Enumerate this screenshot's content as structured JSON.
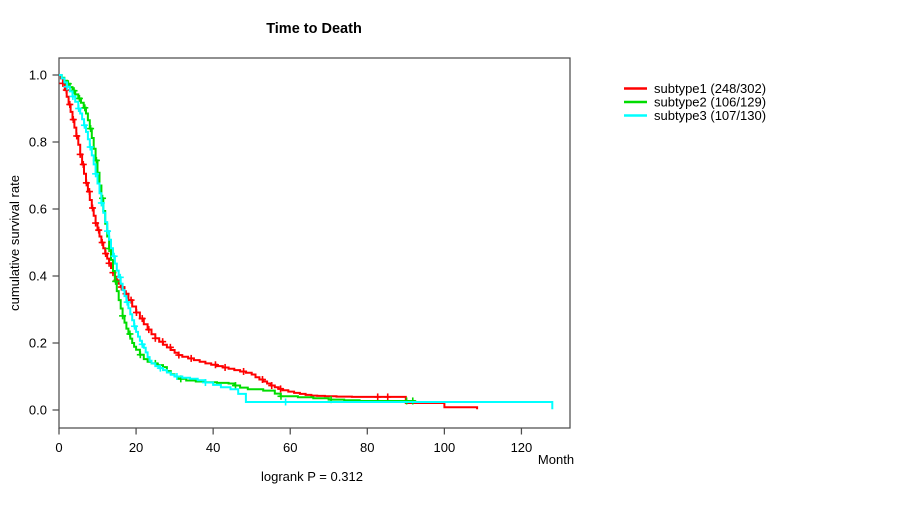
{
  "figure": {
    "background": "#FFFFFF",
    "axis_color": "#4d4d4d",
    "text_color": "#000000"
  },
  "chart_data": {
    "type": "line",
    "variant": "kaplan-meier-survival",
    "title": "Time to Death",
    "xlabel": "Month",
    "ylabel": "cumulative survival rate",
    "footnote": "logrank P = 0.312",
    "xlim": [
      0,
      132.6
    ],
    "ylim": [
      0,
      1
    ],
    "x_ticks": [
      0,
      20,
      40,
      60,
      80,
      100,
      120
    ],
    "y_ticks": [
      0.0,
      0.2,
      0.4,
      0.6,
      0.8,
      1.0
    ],
    "grid": false,
    "legend_position": "right-outside",
    "series": [
      {
        "name": "subtype1 (248/302)",
        "events": 248,
        "n": 302,
        "color": "#FF0000",
        "points": [
          [
            0,
            1
          ],
          [
            0.5,
            0.99
          ],
          [
            1,
            0.975
          ],
          [
            1.5,
            0.955
          ],
          [
            2,
            0.935
          ],
          [
            2.5,
            0.912
          ],
          [
            3,
            0.89
          ],
          [
            3.5,
            0.867
          ],
          [
            4,
            0.843
          ],
          [
            4.5,
            0.818
          ],
          [
            5,
            0.792
          ],
          [
            5.5,
            0.763
          ],
          [
            6,
            0.733
          ],
          [
            6.5,
            0.705
          ],
          [
            7,
            0.678
          ],
          [
            7.5,
            0.652
          ],
          [
            8,
            0.627
          ],
          [
            8.5,
            0.603
          ],
          [
            9,
            0.58
          ],
          [
            9.5,
            0.558
          ],
          [
            10,
            0.537
          ],
          [
            10.5,
            0.518
          ],
          [
            11,
            0.5
          ],
          [
            11.5,
            0.483
          ],
          [
            12,
            0.467
          ],
          [
            12.5,
            0.452
          ],
          [
            13,
            0.438
          ],
          [
            13.5,
            0.424
          ],
          [
            14,
            0.41
          ],
          [
            14.5,
            0.398
          ],
          [
            15,
            0.387
          ],
          [
            15.5,
            0.377
          ],
          [
            16,
            0.367
          ],
          [
            17,
            0.347
          ],
          [
            18,
            0.328
          ],
          [
            19,
            0.309
          ],
          [
            20,
            0.291
          ],
          [
            21,
            0.273
          ],
          [
            22,
            0.256
          ],
          [
            23,
            0.24
          ],
          [
            24,
            0.226
          ],
          [
            25,
            0.214
          ],
          [
            26,
            0.204
          ],
          [
            27,
            0.195
          ],
          [
            28,
            0.187
          ],
          [
            29,
            0.179
          ],
          [
            30,
            0.171
          ],
          [
            31,
            0.164
          ],
          [
            32,
            0.159
          ],
          [
            33.5,
            0.154
          ],
          [
            35,
            0.149
          ],
          [
            36.5,
            0.144
          ],
          [
            38,
            0.139
          ],
          [
            39.5,
            0.135
          ],
          [
            41,
            0.131
          ],
          [
            42.5,
            0.127
          ],
          [
            44,
            0.123
          ],
          [
            45.5,
            0.119
          ],
          [
            47,
            0.115
          ],
          [
            48.5,
            0.111
          ],
          [
            50,
            0.106
          ],
          [
            51,
            0.098
          ],
          [
            52,
            0.091
          ],
          [
            53,
            0.085
          ],
          [
            54,
            0.079
          ],
          [
            55,
            0.073
          ],
          [
            56,
            0.068
          ],
          [
            57,
            0.063
          ],
          [
            58,
            0.059
          ],
          [
            59.5,
            0.055
          ],
          [
            61,
            0.051
          ],
          [
            62.5,
            0.048
          ],
          [
            64,
            0.045
          ],
          [
            65.5,
            0.043
          ],
          [
            67,
            0.042
          ],
          [
            69,
            0.041
          ],
          [
            72,
            0.04
          ],
          [
            76,
            0.039
          ],
          [
            90,
            0.021
          ],
          [
            100,
            0.008
          ],
          [
            108.5,
            0.002
          ]
        ],
        "censor_marks": [
          1.0,
          1.9,
          2.8,
          3.7,
          4.6,
          5.5,
          6.3,
          7.1,
          7.9,
          8.7,
          9.5,
          10.3,
          11.2,
          12.1,
          13.0,
          14.0,
          15.0,
          16.2,
          17.4,
          18.7,
          20.1,
          21.6,
          23.3,
          25.0,
          26.9,
          28.9,
          31.1,
          34.3,
          40.6,
          43.1,
          47.9,
          52.8,
          55.2,
          57.5,
          82.7,
          85.3
        ]
      },
      {
        "name": "subtype2 (106/129)",
        "events": 106,
        "n": 129,
        "color": "#00DC00",
        "points": [
          [
            0,
            1
          ],
          [
            0.7,
            0.992
          ],
          [
            1.4,
            0.983
          ],
          [
            2.1,
            0.974
          ],
          [
            2.8,
            0.964
          ],
          [
            3.5,
            0.953
          ],
          [
            4.2,
            0.942
          ],
          [
            5,
            0.93
          ],
          [
            5.7,
            0.917
          ],
          [
            6.4,
            0.902
          ],
          [
            7,
            0.885
          ],
          [
            7.5,
            0.865
          ],
          [
            8,
            0.84
          ],
          [
            8.5,
            0.812
          ],
          [
            9,
            0.78
          ],
          [
            9.5,
            0.745
          ],
          [
            10,
            0.708
          ],
          [
            10.5,
            0.67
          ],
          [
            11,
            0.632
          ],
          [
            11.5,
            0.594
          ],
          [
            12,
            0.556
          ],
          [
            12.5,
            0.518
          ],
          [
            13,
            0.482
          ],
          [
            13.5,
            0.448
          ],
          [
            14,
            0.415
          ],
          [
            14.5,
            0.384
          ],
          [
            15,
            0.355
          ],
          [
            15.5,
            0.328
          ],
          [
            16,
            0.303
          ],
          [
            16.5,
            0.281
          ],
          [
            17,
            0.261
          ],
          [
            17.5,
            0.243
          ],
          [
            18,
            0.227
          ],
          [
            18.5,
            0.213
          ],
          [
            19,
            0.2
          ],
          [
            19.5,
            0.189
          ],
          [
            20,
            0.18
          ],
          [
            21,
            0.165
          ],
          [
            22,
            0.152
          ],
          [
            23,
            0.144
          ],
          [
            24,
            0.139
          ],
          [
            25.5,
            0.134
          ],
          [
            27,
            0.128
          ],
          [
            28,
            0.116
          ],
          [
            29,
            0.107
          ],
          [
            30,
            0.1
          ],
          [
            31,
            0.093
          ],
          [
            33,
            0.088
          ],
          [
            35.5,
            0.085
          ],
          [
            38,
            0.083
          ],
          [
            41,
            0.081
          ],
          [
            44,
            0.079
          ],
          [
            45.5,
            0.073
          ],
          [
            47,
            0.067
          ],
          [
            49,
            0.062
          ],
          [
            53,
            0.058
          ],
          [
            56,
            0.049
          ],
          [
            57.5,
            0.041
          ],
          [
            62,
            0.038
          ],
          [
            66,
            0.035
          ],
          [
            70,
            0.031
          ],
          [
            74,
            0.029
          ],
          [
            78,
            0.027
          ],
          [
            92.5,
            0.027
          ]
        ],
        "censor_marks": [
          2.4,
          3.9,
          5.3,
          6.7,
          8.2,
          9.7,
          11.3,
          13.0,
          14.7,
          16.5,
          18.4,
          21.1,
          25.0,
          31.6,
          45.8,
          57.6,
          70.6,
          90.2,
          91.8
        ]
      },
      {
        "name": "subtype3 (107/130)",
        "events": 107,
        "n": 130,
        "color": "#00FFFF",
        "points": [
          [
            0,
            1
          ],
          [
            0.7,
            0.99
          ],
          [
            1.4,
            0.978
          ],
          [
            2.1,
            0.965
          ],
          [
            2.8,
            0.951
          ],
          [
            3.5,
            0.936
          ],
          [
            4.2,
            0.92
          ],
          [
            5,
            0.9
          ],
          [
            5.5,
            0.885
          ],
          [
            6,
            0.868
          ],
          [
            6.5,
            0.85
          ],
          [
            7,
            0.83
          ],
          [
            7.5,
            0.808
          ],
          [
            8,
            0.785
          ],
          [
            8.5,
            0.76
          ],
          [
            9,
            0.733
          ],
          [
            9.5,
            0.705
          ],
          [
            10,
            0.676
          ],
          [
            10.5,
            0.647
          ],
          [
            11,
            0.618
          ],
          [
            11.5,
            0.589
          ],
          [
            12,
            0.561
          ],
          [
            12.5,
            0.534
          ],
          [
            13,
            0.508
          ],
          [
            13.5,
            0.483
          ],
          [
            14,
            0.459
          ],
          [
            14.5,
            0.437
          ],
          [
            15,
            0.416
          ],
          [
            15.5,
            0.396
          ],
          [
            16,
            0.377
          ],
          [
            16.5,
            0.358
          ],
          [
            17,
            0.34
          ],
          [
            17.5,
            0.322
          ],
          [
            18,
            0.304
          ],
          [
            18.5,
            0.286
          ],
          [
            19,
            0.268
          ],
          [
            19.5,
            0.25
          ],
          [
            20,
            0.233
          ],
          [
            20.5,
            0.219
          ],
          [
            21,
            0.207
          ],
          [
            21.5,
            0.196
          ],
          [
            22,
            0.186
          ],
          [
            22.5,
            0.172
          ],
          [
            23,
            0.158
          ],
          [
            23.5,
            0.147
          ],
          [
            24,
            0.139
          ],
          [
            25,
            0.131
          ],
          [
            26,
            0.125
          ],
          [
            27,
            0.119
          ],
          [
            28,
            0.112
          ],
          [
            29,
            0.105
          ],
          [
            30,
            0.1
          ],
          [
            32,
            0.096
          ],
          [
            34,
            0.093
          ],
          [
            36,
            0.089
          ],
          [
            38,
            0.082
          ],
          [
            40,
            0.075
          ],
          [
            42,
            0.068
          ],
          [
            44.5,
            0.062
          ],
          [
            46.5,
            0.048
          ],
          [
            48.5,
            0.024
          ],
          [
            127.5,
            0.024
          ],
          [
            128,
            0.002
          ]
        ],
        "censor_marks": [
          2.1,
          3.6,
          5.1,
          6.6,
          8.1,
          9.5,
          11.0,
          12.6,
          14.3,
          15.9,
          17.7,
          19.6,
          21.6,
          26.3,
          30.6,
          38.0,
          58.8
        ]
      }
    ]
  }
}
